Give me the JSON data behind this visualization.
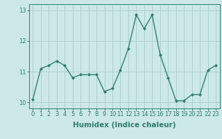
{
  "x": [
    0,
    1,
    2,
    3,
    4,
    5,
    6,
    7,
    8,
    9,
    10,
    11,
    12,
    13,
    14,
    15,
    16,
    17,
    18,
    19,
    20,
    21,
    22,
    23
  ],
  "y": [
    10.1,
    11.1,
    11.2,
    11.35,
    11.2,
    10.8,
    10.9,
    10.9,
    10.9,
    10.35,
    10.45,
    11.05,
    11.75,
    12.85,
    12.4,
    12.85,
    11.55,
    10.8,
    10.05,
    10.05,
    10.25,
    10.25,
    11.05,
    11.2
  ],
  "line_color": "#2e7d6e",
  "marker": "D",
  "marker_size": 2.0,
  "bg_color": "#cce8e8",
  "grid_color": "#afd0d0",
  "xlabel": "Humidex (Indice chaleur)",
  "ylim": [
    9.8,
    13.2
  ],
  "xlim": [
    -0.5,
    23.5
  ],
  "yticks": [
    10,
    11,
    12,
    13
  ],
  "xticks": [
    0,
    1,
    2,
    3,
    4,
    5,
    6,
    7,
    8,
    9,
    10,
    11,
    12,
    13,
    14,
    15,
    16,
    17,
    18,
    19,
    20,
    21,
    22,
    23
  ],
  "tick_label_fontsize": 6.0,
  "xlabel_fontsize": 7.5,
  "line_width": 1.0
}
